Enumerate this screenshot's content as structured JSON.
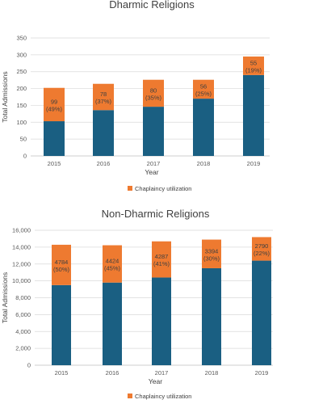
{
  "colors": {
    "base": "#1a5f82",
    "chaplaincy": "#ee7a30"
  },
  "chart_data": [
    {
      "type": "bar",
      "stacked": true,
      "title": "Dharmic Religions",
      "xlabel": "Year",
      "ylabel": "Total Admissions",
      "ylim": [
        0,
        350
      ],
      "yticks": [
        "0",
        "50",
        "100",
        "150",
        "200",
        "250",
        "300",
        "350"
      ],
      "grid": true,
      "legend_position": "bottom",
      "categories": [
        "2015",
        "2016",
        "2017",
        "2018",
        "2019"
      ],
      "series": [
        {
          "values": [
            103,
            136,
            146,
            170,
            240
          ]
        },
        {
          "name": "Chaplaincy utilization",
          "values": [
            99,
            78,
            80,
            56,
            55
          ],
          "labels": [
            "99",
            "78",
            "80",
            "56",
            "55"
          ],
          "percents": [
            "(49%)",
            "(37%)",
            "(35%)",
            "(25%)",
            "(19%)"
          ]
        }
      ]
    },
    {
      "type": "bar",
      "stacked": true,
      "title": "Non-Dharmic Religions",
      "xlabel": "Year",
      "ylabel": "Total Admissions",
      "ylim": [
        0,
        16000
      ],
      "yticks": [
        "0",
        "2,000",
        "4,000",
        "6,000",
        "8,000",
        "10,000",
        "12,000",
        "14,000",
        "16,000"
      ],
      "grid": true,
      "legend_position": "bottom",
      "categories": [
        "2015",
        "2016",
        "2017",
        "2018",
        "2019"
      ],
      "series": [
        {
          "values": [
            9500,
            9800,
            10400,
            11500,
            12400
          ]
        },
        {
          "name": "Chaplaincy utilization",
          "values": [
            4784,
            4424,
            4287,
            3394,
            2790
          ],
          "labels": [
            "4784",
            "4424",
            "4287",
            "3394",
            "2790"
          ],
          "percents": [
            "(50%)",
            "(45%)",
            "(41%)",
            "(30%)",
            "(22%)"
          ]
        }
      ]
    }
  ]
}
